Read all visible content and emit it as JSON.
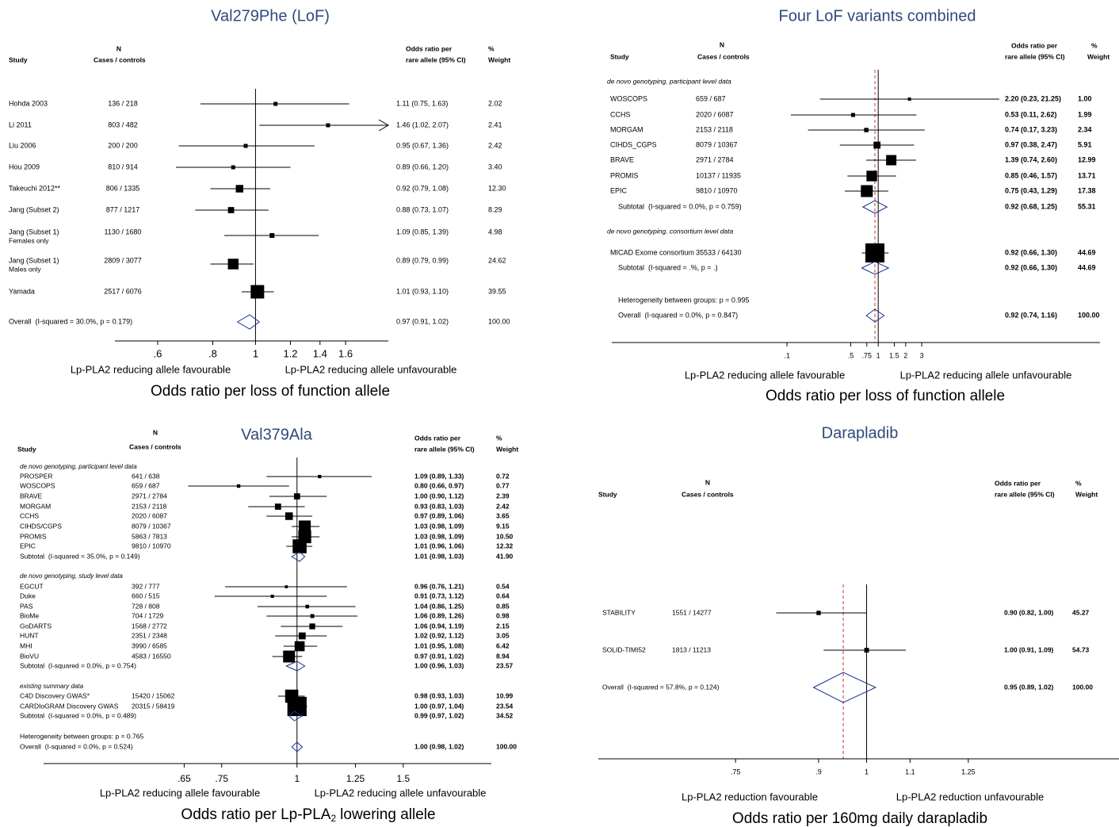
{
  "chart_data": [
    {
      "type": "forest",
      "title": "Val279Phe (LoF)",
      "log_x": true,
      "bold_results": false,
      "dashed_overall_line": false,
      "headers": {
        "n": "N",
        "study": "Study",
        "cases": "Cases / controls",
        "or1": "Odds ratio per",
        "or2": "rare allele (95% CI)",
        "pct": "%",
        "weight": "Weight"
      },
      "rows": [
        {
          "kind": "study",
          "study": "Hohda 2003",
          "n": "136 / 218",
          "value": 1.11,
          "lo": 0.75,
          "hi": 1.63,
          "value_label": "1.11 (0.75, 1.63)",
          "weight": 2.02
        },
        {
          "kind": "study",
          "study": "Li 2011",
          "n": "803 / 482",
          "value": 1.46,
          "lo": 1.02,
          "hi": 2.07,
          "value_label": "1.46 (1.02, 2.07)",
          "weight": 2.41
        },
        {
          "kind": "study",
          "study": "Liu 2006",
          "n": "200 / 200",
          "value": 0.95,
          "lo": 0.67,
          "hi": 1.36,
          "value_label": "0.95 (0.67, 1.36)",
          "weight": 2.42
        },
        {
          "kind": "study",
          "study": "Hou 2009",
          "n": "810 / 914",
          "value": 0.89,
          "lo": 0.66,
          "hi": 1.2,
          "value_label": "0.89 (0.66, 1.20)",
          "weight": 3.4,
          "weight_label": "3.40"
        },
        {
          "kind": "study",
          "study": "Takeuchi 2012**",
          "n": "806 / 1335",
          "value": 0.92,
          "lo": 0.79,
          "hi": 1.08,
          "value_label": "0.92 (0.79, 1.08)",
          "weight": 12.3,
          "weight_label": "12.30"
        },
        {
          "kind": "study",
          "study": "Jang (Subset 2)",
          "n": "877 / 1217",
          "value": 0.88,
          "lo": 0.73,
          "hi": 1.07,
          "value_label": "0.88 (0.73, 1.07)",
          "weight": 8.29
        },
        {
          "kind": "study",
          "study": "Jang (Subset 1)",
          "study_note": "Females only",
          "n": "1130 / 1680",
          "value": 1.09,
          "lo": 0.85,
          "hi": 1.39,
          "value_label": "1.09 (0.85, 1.39)",
          "weight": 4.98
        },
        {
          "kind": "study",
          "study": "Jang (Subset 1)",
          "study_note": "Males only",
          "n": "2809 / 3077",
          "value": 0.89,
          "lo": 0.79,
          "hi": 0.99,
          "value_label": "0.89 (0.79, 0.99)",
          "weight": 24.62
        },
        {
          "kind": "study",
          "study": "Yamada",
          "n": "2517 / 6076",
          "value": 1.01,
          "lo": 0.93,
          "hi": 1.1,
          "value_label": "1.01 (0.93, 1.10)",
          "weight": 39.55
        },
        {
          "kind": "overall",
          "study": "Overall  (I-squared = 30.0%, p = 0.179)",
          "value": 0.97,
          "lo": 0.91,
          "hi": 1.02,
          "value_label": "0.97 (0.91, 1.02)",
          "weight": 100,
          "weight_label": "100.00"
        }
      ],
      "xlim": [
        0.48,
        2.0
      ],
      "xticks": [
        {
          "value": 0.6,
          "label": ".6"
        },
        {
          "value": 0.8,
          "label": ".8"
        },
        1,
        1.2,
        1.4,
        1.6
      ],
      "favours": [
        "Lp-PLA2 reducing allele favourable",
        "Lp-PLA2 reducing allele unfavourable"
      ],
      "xlabel": "Odds ratio per loss of function allele"
    },
    {
      "type": "forest",
      "title": "Four LoF variants combined",
      "log_x": true,
      "bold_results": true,
      "dashed_overall_line": true,
      "headers": {
        "n": "N",
        "study": "Study",
        "cases": "Cases / controls",
        "or1": "Odds ratio per",
        "or2": "rare allele (95% CI)",
        "pct": "%",
        "weight": "Weight"
      },
      "rows": [
        {
          "kind": "group",
          "study": "de novo genotyping, participant level data"
        },
        {
          "kind": "study",
          "study": "WOSCOPS",
          "n": "659 / 687",
          "value": 2.2,
          "lo": 0.23,
          "hi": 21.25,
          "value_label": "2.20 (0.23, 21.25)",
          "weight": 1,
          "weight_label": "1.00"
        },
        {
          "kind": "study",
          "study": "CCHS",
          "n": "2020 / 6087",
          "value": 0.53,
          "lo": 0.11,
          "hi": 2.62,
          "value_label": "0.53 (0.11, 2.62)",
          "weight": 1.99
        },
        {
          "kind": "study",
          "study": "MORGAM",
          "n": "2153 / 2118",
          "value": 0.74,
          "lo": 0.17,
          "hi": 3.23,
          "value_label": "0.74 (0.17, 3.23)",
          "weight": 2.34
        },
        {
          "kind": "study",
          "study": "CIHDS_CGPS",
          "n": "8079 / 10367",
          "value": 0.97,
          "lo": 0.38,
          "hi": 2.47,
          "value_label": "0.97 (0.38, 2.47)",
          "weight": 5.91
        },
        {
          "kind": "study",
          "study": "BRAVE",
          "n": "2971 / 2784",
          "value": 1.39,
          "lo": 0.74,
          "hi": 2.6,
          "value_label": "1.39 (0.74, 2.60)",
          "weight": 12.99
        },
        {
          "kind": "study",
          "study": "PROMIS",
          "n": "10137 / 11935",
          "value": 0.85,
          "lo": 0.46,
          "hi": 1.57,
          "value_label": "0.85 (0.46, 1.57)",
          "weight": 13.71
        },
        {
          "kind": "study",
          "study": "EPIC",
          "n": "9810 / 10970",
          "value": 0.75,
          "lo": 0.43,
          "hi": 1.29,
          "value_label": "0.75 (0.43, 1.29)",
          "weight": 17.38
        },
        {
          "kind": "subtotal",
          "study": "Subtotal  (I-squared = 0.0%, p = 0.759)",
          "value": 0.92,
          "lo": 0.68,
          "hi": 1.25,
          "value_label": "0.92 (0.68, 1.25)",
          "weight": 55.31
        },
        {
          "kind": "group",
          "study": "de novo genotyping, consortium level data"
        },
        {
          "kind": "study",
          "study": "MICAD Exome consortium",
          "n": "35533 / 64130",
          "value": 0.92,
          "lo": 0.66,
          "hi": 1.3,
          "value_label": "0.92 (0.66, 1.30)",
          "weight": 44.69
        },
        {
          "kind": "subtotal",
          "study": "Subtotal  (I-squared = .%, p = .)",
          "value": 0.92,
          "lo": 0.66,
          "hi": 1.3,
          "value_label": "0.92 (0.66, 1.30)",
          "weight": 44.69
        },
        {
          "kind": "note",
          "study": "Heterogeneity between groups: p = 0.995"
        },
        {
          "kind": "overall",
          "study": "Overall  (I-squared = 0.0%, p = 0.847)",
          "value": 0.92,
          "lo": 0.74,
          "hi": 1.16,
          "value_label": "0.92 (0.74, 1.16)",
          "weight": 100,
          "weight_label": "100.00"
        }
      ],
      "xlim": [
        0.0012,
        270
      ],
      "xticks": [
        {
          "value": 0.1,
          "label": ".1"
        },
        {
          "value": 0.5,
          "label": ".5"
        },
        {
          "value": 0.75,
          "label": ".75"
        },
        1,
        1.5,
        2,
        3
      ],
      "favours": [
        "Lp-PLA2 reducing allele favourable",
        "Lp-PLA2 reducing allele unfavourable"
      ],
      "xlabel": "Odds ratio per loss of function allele"
    },
    {
      "type": "forest",
      "title": "Val379Ala",
      "log_x": true,
      "bold_results": true,
      "dashed_overall_line": false,
      "headers": {
        "n": "N",
        "study": "Study",
        "cases": "Cases / controls",
        "or1": "Odds ratio per",
        "or2": "rare allele (95% CI)",
        "pct": "%",
        "weight": "Weight"
      },
      "rows": [
        {
          "kind": "group",
          "study": "de novo genotyping, participant level data"
        },
        {
          "kind": "study",
          "study": "PROSPER",
          "n": "641 / 638",
          "value": 1.09,
          "lo": 0.89,
          "hi": 1.33,
          "value_label": "1.09 (0.89, 1.33)",
          "weight": 0.72
        },
        {
          "kind": "study",
          "study": "WOSCOPS",
          "n": "659 / 687",
          "value": 0.8,
          "lo": 0.66,
          "hi": 0.97,
          "value_label": "0.80 (0.66, 0.97)",
          "weight": 0.77
        },
        {
          "kind": "study",
          "study": "BRAVE",
          "n": "2971 / 2784",
          "value": 1.0,
          "lo": 0.9,
          "hi": 1.12,
          "value_label": "1.00 (0.90, 1.12)",
          "weight": 2.39
        },
        {
          "kind": "study",
          "study": "MORGAM",
          "n": "2153 / 2118",
          "value": 0.93,
          "lo": 0.83,
          "hi": 1.03,
          "value_label": "0.93 (0.83, 1.03)",
          "weight": 2.42
        },
        {
          "kind": "study",
          "study": "CCHS",
          "n": "2020 / 6087",
          "value": 0.97,
          "lo": 0.89,
          "hi": 1.06,
          "value_label": "0.97 (0.89, 1.06)",
          "weight": 3.65
        },
        {
          "kind": "study",
          "study": "CIHDS/CGPS",
          "n": "8079 / 10367",
          "value": 1.03,
          "lo": 0.98,
          "hi": 1.09,
          "value_label": "1.03 (0.98, 1.09)",
          "weight": 9.15
        },
        {
          "kind": "study",
          "study": "PROMIS",
          "n": "5863 / 7813",
          "value": 1.03,
          "lo": 0.98,
          "hi": 1.09,
          "value_label": "1.03 (0.98, 1.09)",
          "weight": 10.5,
          "weight_label": "10.50"
        },
        {
          "kind": "study",
          "study": "EPIC",
          "n": "9810 / 10970",
          "value": 1.01,
          "lo": 0.96,
          "hi": 1.06,
          "value_label": "1.01 (0.96, 1.06)",
          "weight": 12.32
        },
        {
          "kind": "subtotal",
          "study": "Subtotal  (I-squared = 35.0%, p = 0.149)",
          "value": 1.01,
          "lo": 0.98,
          "hi": 1.03,
          "value_label": "1.01 (0.98, 1.03)",
          "weight": 41.9,
          "weight_label": "41.90"
        },
        {
          "kind": "group",
          "study": "de novo genotyping, study level data"
        },
        {
          "kind": "study",
          "study": "EGCUT",
          "n": "392 / 777",
          "value": 0.96,
          "lo": 0.76,
          "hi": 1.21,
          "value_label": "0.96 (0.76, 1.21)",
          "weight": 0.54
        },
        {
          "kind": "study",
          "study": "Duke",
          "n": "660 / 515",
          "value": 0.91,
          "lo": 0.73,
          "hi": 1.12,
          "value_label": "0.91 (0.73, 1.12)",
          "weight": 0.64
        },
        {
          "kind": "study",
          "study": "PAS",
          "n": "728 / 808",
          "value": 1.04,
          "lo": 0.86,
          "hi": 1.25,
          "value_label": "1.04 (0.86, 1.25)",
          "weight": 0.85
        },
        {
          "kind": "study",
          "study": "BioMe",
          "n": "704 / 1729",
          "value": 1.06,
          "lo": 0.89,
          "hi": 1.26,
          "value_label": "1.06 (0.89, 1.26)",
          "weight": 0.98
        },
        {
          "kind": "study",
          "study": "GoDARTS",
          "n": "1568 / 2772",
          "value": 1.06,
          "lo": 0.94,
          "hi": 1.19,
          "value_label": "1.06 (0.94, 1.19)",
          "weight": 2.15
        },
        {
          "kind": "study",
          "study": "HUNT",
          "n": "2351 / 2348",
          "value": 1.02,
          "lo": 0.92,
          "hi": 1.12,
          "value_label": "1.02 (0.92, 1.12)",
          "weight": 3.05
        },
        {
          "kind": "study",
          "study": "MHI",
          "n": "3990 / 6585",
          "value": 1.01,
          "lo": 0.95,
          "hi": 1.08,
          "value_label": "1.01 (0.95, 1.08)",
          "weight": 6.42
        },
        {
          "kind": "study",
          "study": "BioVU",
          "n": "4583 / 16550",
          "value": 0.97,
          "lo": 0.91,
          "hi": 1.02,
          "value_label": "0.97 (0.91, 1.02)",
          "weight": 8.94
        },
        {
          "kind": "subtotal",
          "study": "Subtotal  (I-squared = 0.0%, p = 0.754)",
          "value": 1.0,
          "lo": 0.96,
          "hi": 1.03,
          "value_label": "1.00 (0.96, 1.03)",
          "weight": 23.57
        },
        {
          "kind": "group",
          "study": "existing summary data"
        },
        {
          "kind": "study",
          "study": "C4D Discovery GWAS*",
          "n": "15420 / 15062",
          "value": 0.98,
          "lo": 0.93,
          "hi": 1.03,
          "value_label": "0.98 (0.93, 1.03)",
          "weight": 10.99
        },
        {
          "kind": "study",
          "study": "CARDIoGRAM Discovery GWAS",
          "n": "20315 / 58419",
          "value": 1.0,
          "lo": 0.97,
          "hi": 1.04,
          "value_label": "1.00 (0.97, 1.04)",
          "weight": 23.54
        },
        {
          "kind": "subtotal",
          "study": "Subtotal  (I-squared = 0.0%, p = 0.489)",
          "value": 0.99,
          "lo": 0.97,
          "hi": 1.02,
          "value_label": "0.99 (0.97, 1.02)",
          "weight": 34.52
        },
        {
          "kind": "note",
          "study": "Heterogeneity between groups: p = 0.765"
        },
        {
          "kind": "overall",
          "study": "Overall  (I-squared = 0.0%, p = 0.524)",
          "value": 1.0,
          "lo": 0.98,
          "hi": 1.02,
          "value_label": "1.00 (0.98, 1.02)",
          "weight": 100,
          "weight_label": "100.00"
        }
      ],
      "xlim": [
        0.38,
        2.1
      ],
      "xticks": [
        {
          "value": 0.65,
          "label": ".65"
        },
        {
          "value": 0.75,
          "label": ".75"
        },
        1,
        1.25,
        1.5
      ],
      "favours": [
        "Lp-PLA2 reducing allele favourable",
        "Lp-PLA2 reducing allele unfavourable"
      ],
      "xlabel": [
        "Odds ratio per Lp-PLA",
        "2",
        "lowering allele"
      ]
    },
    {
      "type": "forest",
      "title": "Darapladib",
      "log_x": true,
      "bold_results": true,
      "dashed_overall_line": true,
      "headers": {
        "n": "N",
        "study": "Study",
        "cases": "Cases / controls",
        "or1": "Odds ratio per",
        "or2": "rare allele (95% CI)",
        "pct": "%",
        "weight": "Weight"
      },
      "rows": [
        {
          "kind": "study",
          "study": "STABILITY",
          "n": "1551 / 14277",
          "value": 0.9,
          "lo": 0.82,
          "hi": 1.0,
          "value_label": "0.90 (0.82, 1.00)",
          "weight": 45.27
        },
        {
          "kind": "study",
          "study": "SOLID-TIMI52",
          "n": "1813 / 11213",
          "value": 1.0,
          "lo": 0.91,
          "hi": 1.09,
          "value_label": "1.00 (0.91, 1.09)",
          "weight": 54.73
        },
        {
          "kind": "overall",
          "study": "Overall  (I-squared = 57.8%, p = 0.124)",
          "value": 0.95,
          "lo": 0.89,
          "hi": 1.02,
          "value_label": "0.95 (0.89, 1.02)",
          "weight": 100,
          "weight_label": "100.00"
        }
      ],
      "xlim": [
        0.555,
        1.74
      ],
      "xticks": [
        {
          "value": 0.75,
          "label": ".75"
        },
        {
          "value": 0.9,
          "label": ".9"
        },
        1,
        1.1,
        1.25
      ],
      "favours": [
        "Lp-PLA2 reduction favourable",
        "Lp-PLA2 reduction unfavourable"
      ],
      "xlabel": "Odds ratio per 160mg daily darapladib"
    }
  ]
}
